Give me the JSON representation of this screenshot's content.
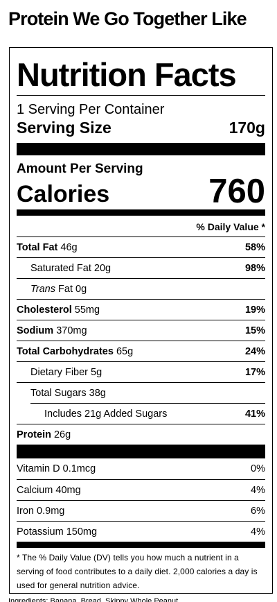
{
  "product_title": "Protein We Go Together Like",
  "label": {
    "title": "Nutrition Facts",
    "servings_per_container": "1 Serving Per Container",
    "serving_size_label": "Serving Size",
    "serving_size_value": "170g",
    "amount_per_serving": "Amount Per Serving",
    "calories_label": "Calories",
    "calories_value": "760",
    "dv_header": "% Daily Value *",
    "nutrients": [
      {
        "name": "Total Fat",
        "amount": "46g",
        "dv": "58%"
      },
      {
        "name": "Saturated Fat",
        "amount": "20g",
        "dv": "98%"
      },
      {
        "name": "Trans",
        "name_rest": "Fat",
        "amount": "0g",
        "dv": ""
      },
      {
        "name": "Cholesterol",
        "amount": "55mg",
        "dv": "19%"
      },
      {
        "name": "Sodium",
        "amount": "370mg",
        "dv": "15%"
      },
      {
        "name": "Total Carbohydrates",
        "amount": "65g",
        "dv": "24%"
      },
      {
        "name": "Dietary Fiber",
        "amount": "5g",
        "dv": "17%"
      },
      {
        "name": "Total Sugars",
        "amount": "38g",
        "dv": ""
      },
      {
        "name": "Includes 21g Added Sugars",
        "amount": "",
        "dv": "41%"
      },
      {
        "name": "Protein",
        "amount": "26g",
        "dv": ""
      }
    ],
    "vitamins": [
      {
        "name": "Vitamin D",
        "amount": "0.1mcg",
        "dv": "0%"
      },
      {
        "name": "Calcium",
        "amount": "40mg",
        "dv": "4%"
      },
      {
        "name": "Iron",
        "amount": "0.9mg",
        "dv": "6%"
      },
      {
        "name": "Potassium",
        "amount": "150mg",
        "dv": "4%"
      }
    ],
    "footnote": "* The % Daily Value (DV) tells you how much a nutrient in a serving of food contributes to a daily diet. 2,000 calories a day is used for general nutrition advice."
  },
  "bottom_strip_text": "Ingredients: Banana, Bread, Skippy Whole Peanut"
}
